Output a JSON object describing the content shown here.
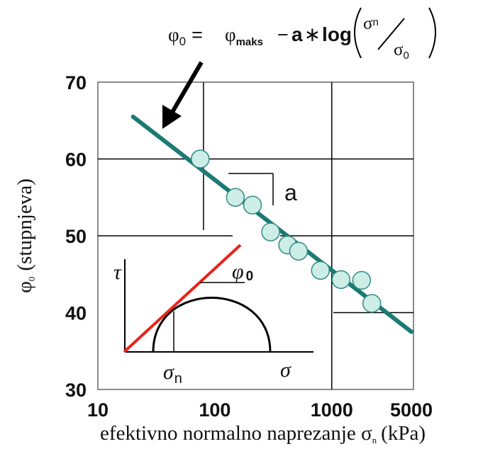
{
  "chart_data": {
    "type": "scatter",
    "title": "",
    "xlabel": "efektivno normalno naprezanje σ",
    "xlabel_sub": "n",
    "xlabel_unit": "(kPa)",
    "ylabel": "φ",
    "ylabel_sub": "0",
    "ylabel_unit": "(stupnjeva)",
    "x_scale": "log",
    "xlim": [
      10,
      5000
    ],
    "ylim": [
      30,
      70
    ],
    "x_ticks": [
      10,
      100,
      1000,
      5000
    ],
    "x_tick_labels": [
      "10",
      "100",
      "1000",
      "5000"
    ],
    "y_ticks": [
      30,
      40,
      50,
      60,
      70
    ],
    "y_tick_labels": [
      "30",
      "40",
      "50",
      "60",
      "70"
    ],
    "grid": true,
    "series": [
      {
        "kind": "points",
        "x": [
          75,
          150,
          210,
          300,
          420,
          520,
          800,
          1200,
          1800,
          2200
        ],
        "y": [
          60,
          55,
          54,
          50.5,
          48.8,
          48,
          45.5,
          44.3,
          44.2,
          41.2
        ]
      },
      {
        "kind": "line",
        "x": [
          20,
          4800
        ],
        "y": [
          65.5,
          37.5
        ]
      }
    ],
    "colors": {
      "trend_line": "#1b7a74",
      "points_fill": "#cdeee6",
      "points_edge": "#2f8a82",
      "envelope_line": "#e8231b",
      "annotation_arrow": "#000000"
    },
    "annotations": {
      "equation_lhs": "φ",
      "equation_lhs_sub": "0",
      "equation_eq": "=",
      "equation_phi": "φ",
      "equation_phi_sub": "maks",
      "equation_minus": "−",
      "equation_coef": "a",
      "equation_star": "∗",
      "equation_log": "log",
      "equation_num": "σ",
      "equation_num_sub": "n",
      "equation_den": "σ",
      "equation_den_sub": "0",
      "slope_label": "a",
      "inset_tau": "τ",
      "inset_phi": "φ",
      "inset_phi_sub": "0",
      "inset_sigma_n": "σ",
      "inset_sigma_n_sub": "n",
      "inset_sigma": "σ"
    }
  }
}
